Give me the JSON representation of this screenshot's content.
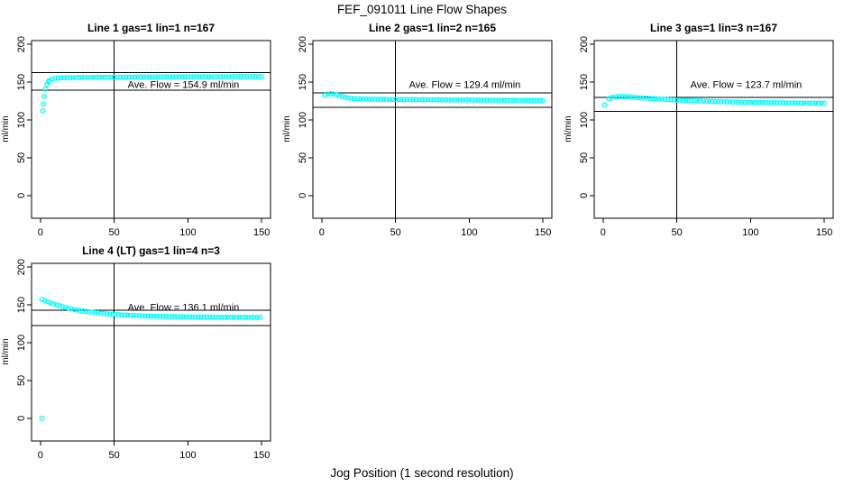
{
  "figure": {
    "title": "FEF_091011  Line Flow Shapes",
    "xlabel": "Jog Position (1 second resolution)",
    "ylabel": "ml/min",
    "point_color": "#00FFFF",
    "line_color": "#000000",
    "background": "#FFFFFF"
  },
  "chart_data": [
    {
      "type": "scatter",
      "title": "Line 1 gas=1 lin=1 n=167",
      "ave_flow": 154.9,
      "ave_flow_label": "Ave. Flow =  154.9  ml/min",
      "xlim": [
        0,
        150
      ],
      "ylim": [
        0,
        200
      ],
      "x_ticks": [
        0,
        50,
        100,
        150
      ],
      "y_ticks": [
        0,
        50,
        100,
        150,
        200
      ],
      "vline_x": 50,
      "hlines": [
        162.6,
        139.4
      ],
      "points": [
        [
          1.5,
          112
        ],
        [
          2,
          121
        ],
        [
          2.5,
          131
        ],
        [
          3.5,
          141
        ],
        [
          4.5,
          147
        ],
        [
          5.5,
          150.5
        ],
        [
          6,
          152.3
        ],
        [
          8,
          154.2
        ],
        [
          10,
          155.1
        ],
        [
          12,
          155.5
        ],
        [
          14,
          155.8
        ],
        [
          16,
          155.9
        ],
        [
          18,
          156
        ],
        [
          20,
          156
        ],
        [
          22,
          156.1
        ],
        [
          24,
          156.1
        ],
        [
          26,
          156.2
        ],
        [
          28,
          156.2
        ],
        [
          30,
          156.3
        ],
        [
          32,
          156.3
        ],
        [
          34,
          156.3
        ],
        [
          36,
          156.4
        ],
        [
          38,
          156.4
        ],
        [
          40,
          156.4
        ],
        [
          42,
          156.5
        ],
        [
          44,
          156.5
        ],
        [
          46,
          156.5
        ],
        [
          48,
          156.5
        ],
        [
          50,
          156.6
        ],
        [
          52,
          156.6
        ],
        [
          54,
          156.6
        ],
        [
          56,
          156.6
        ],
        [
          58,
          156.7
        ],
        [
          60,
          156.7
        ],
        [
          62,
          156.7
        ],
        [
          64,
          156.7
        ],
        [
          66,
          156.8
        ],
        [
          68,
          156.8
        ],
        [
          70,
          156.8
        ],
        [
          72,
          156.8
        ],
        [
          74,
          156.8
        ],
        [
          76,
          156.9
        ],
        [
          78,
          156.9
        ],
        [
          80,
          156.9
        ],
        [
          82,
          156.9
        ],
        [
          84,
          156.9
        ],
        [
          86,
          157
        ],
        [
          88,
          157
        ],
        [
          90,
          157
        ],
        [
          92,
          157
        ],
        [
          94,
          157
        ],
        [
          96,
          157
        ],
        [
          98,
          157
        ],
        [
          100,
          157
        ],
        [
          102,
          157.1
        ],
        [
          104,
          157.1
        ],
        [
          106,
          157.1
        ],
        [
          108,
          157.1
        ],
        [
          110,
          157.1
        ],
        [
          112,
          157.1
        ],
        [
          114,
          157.1
        ],
        [
          116,
          157.2
        ],
        [
          118,
          157.2
        ],
        [
          120,
          157.2
        ],
        [
          122,
          157.2
        ],
        [
          124,
          157.2
        ],
        [
          126,
          157.2
        ],
        [
          128,
          157.2
        ],
        [
          130,
          157.2
        ],
        [
          132,
          157.3
        ],
        [
          134,
          157.3
        ],
        [
          136,
          157.3
        ],
        [
          138,
          157.3
        ],
        [
          140,
          157.3
        ],
        [
          142,
          157.3
        ],
        [
          144,
          157.3
        ],
        [
          146,
          157.3
        ],
        [
          148,
          157.3
        ],
        [
          150,
          157.3
        ]
      ]
    },
    {
      "type": "scatter",
      "title": "Line 2 gas=1 lin=2 n=165",
      "ave_flow": 129.4,
      "ave_flow_label": "Ave. Flow =  129.4  ml/min",
      "xlim": [
        0,
        150
      ],
      "ylim": [
        0,
        200
      ],
      "x_ticks": [
        0,
        50,
        100,
        150
      ],
      "y_ticks": [
        0,
        50,
        100,
        150,
        200
      ],
      "vline_x": 50,
      "hlines": [
        135.9,
        116.5
      ],
      "points": [
        [
          2,
          132.5
        ],
        [
          4,
          134.3
        ],
        [
          6,
          134.8
        ],
        [
          8,
          134.4
        ],
        [
          10,
          133.4
        ],
        [
          12,
          132.2
        ],
        [
          14,
          131
        ],
        [
          16,
          130
        ],
        [
          18,
          129.2
        ],
        [
          20,
          128.7
        ],
        [
          22,
          128.3
        ],
        [
          24,
          128
        ],
        [
          26,
          127.8
        ],
        [
          28,
          127.7
        ],
        [
          30,
          127.6
        ],
        [
          32,
          127.5
        ],
        [
          34,
          127.5
        ],
        [
          36,
          127.4
        ],
        [
          38,
          127.4
        ],
        [
          40,
          127.3
        ],
        [
          42,
          127.3
        ],
        [
          44,
          127.2
        ],
        [
          46,
          127.2
        ],
        [
          48,
          127.1
        ],
        [
          50,
          127.1
        ],
        [
          52,
          127.1
        ],
        [
          54,
          127
        ],
        [
          56,
          127
        ],
        [
          58,
          127
        ],
        [
          60,
          126.9
        ],
        [
          62,
          126.9
        ],
        [
          64,
          126.9
        ],
        [
          66,
          126.8
        ],
        [
          68,
          126.8
        ],
        [
          70,
          126.8
        ],
        [
          72,
          126.7
        ],
        [
          74,
          126.7
        ],
        [
          76,
          126.7
        ],
        [
          78,
          126.7
        ],
        [
          80,
          126.6
        ],
        [
          82,
          126.6
        ],
        [
          84,
          126.6
        ],
        [
          86,
          126.5
        ],
        [
          88,
          126.5
        ],
        [
          90,
          126.5
        ],
        [
          92,
          126.5
        ],
        [
          94,
          126.4
        ],
        [
          96,
          126.4
        ],
        [
          98,
          126.4
        ],
        [
          100,
          126.4
        ],
        [
          102,
          126.3
        ],
        [
          104,
          126.3
        ],
        [
          106,
          126.3
        ],
        [
          108,
          126.3
        ],
        [
          110,
          126.2
        ],
        [
          112,
          126.2
        ],
        [
          114,
          126.2
        ],
        [
          116,
          126.2
        ],
        [
          118,
          126.1
        ],
        [
          120,
          126.1
        ],
        [
          122,
          126.1
        ],
        [
          124,
          126.1
        ],
        [
          126,
          126
        ],
        [
          128,
          126
        ],
        [
          130,
          126
        ],
        [
          132,
          126
        ],
        [
          134,
          125.9
        ],
        [
          136,
          125.9
        ],
        [
          138,
          125.9
        ],
        [
          140,
          125.9
        ],
        [
          142,
          125.8
        ],
        [
          144,
          125.8
        ],
        [
          146,
          125.8
        ],
        [
          148,
          125.8
        ],
        [
          150,
          125.7
        ]
      ]
    },
    {
      "type": "scatter",
      "title": "Line 3 gas=1 lin=3 n=167",
      "ave_flow": 123.7,
      "ave_flow_label": "Ave. Flow =  123.7  ml/min",
      "xlim": [
        0,
        150
      ],
      "ylim": [
        0,
        200
      ],
      "x_ticks": [
        0,
        50,
        100,
        150
      ],
      "y_ticks": [
        0,
        50,
        100,
        150,
        200
      ],
      "vline_x": 50,
      "hlines": [
        129.9,
        111.3
      ],
      "points": [
        [
          1,
          120
        ],
        [
          4,
          128.3
        ],
        [
          6,
          129.8
        ],
        [
          8,
          130.5
        ],
        [
          10,
          130.9
        ],
        [
          12,
          131
        ],
        [
          14,
          130.9
        ],
        [
          16,
          130.7
        ],
        [
          18,
          130.4
        ],
        [
          20,
          130.1
        ],
        [
          22,
          129.8
        ],
        [
          24,
          129.5
        ],
        [
          26,
          129.2
        ],
        [
          28,
          128.9
        ],
        [
          30,
          128.7
        ],
        [
          32,
          128.4
        ],
        [
          34,
          128.2
        ],
        [
          36,
          127.9
        ],
        [
          38,
          127.7
        ],
        [
          40,
          127.5
        ],
        [
          42,
          127.2
        ],
        [
          44,
          127
        ],
        [
          46,
          126.8
        ],
        [
          48,
          126.6
        ],
        [
          50,
          126.4
        ],
        [
          52,
          126.2
        ],
        [
          54,
          126.1
        ],
        [
          56,
          125.9
        ],
        [
          58,
          125.7
        ],
        [
          60,
          125.6
        ],
        [
          62,
          125.4
        ],
        [
          64,
          125.3
        ],
        [
          66,
          125.1
        ],
        [
          68,
          125
        ],
        [
          70,
          124.8
        ],
        [
          72,
          124.7
        ],
        [
          74,
          124.6
        ],
        [
          76,
          124.5
        ],
        [
          78,
          124.3
        ],
        [
          80,
          124.2
        ],
        [
          82,
          124.1
        ],
        [
          84,
          124
        ],
        [
          86,
          123.9
        ],
        [
          88,
          123.8
        ],
        [
          90,
          123.7
        ],
        [
          92,
          123.7
        ],
        [
          94,
          123.6
        ],
        [
          96,
          123.5
        ],
        [
          98,
          123.4
        ],
        [
          100,
          123.3
        ],
        [
          102,
          123.3
        ],
        [
          104,
          123.2
        ],
        [
          106,
          123.1
        ],
        [
          108,
          123.1
        ],
        [
          110,
          123
        ],
        [
          112,
          122.9
        ],
        [
          114,
          122.9
        ],
        [
          116,
          122.8
        ],
        [
          118,
          122.8
        ],
        [
          120,
          122.7
        ],
        [
          122,
          122.7
        ],
        [
          124,
          122.6
        ],
        [
          126,
          122.6
        ],
        [
          128,
          122.5
        ],
        [
          130,
          122.5
        ],
        [
          132,
          122.4
        ],
        [
          134,
          122.4
        ],
        [
          136,
          122.4
        ],
        [
          138,
          122.3
        ],
        [
          140,
          122.3
        ],
        [
          142,
          122.3
        ],
        [
          144,
          122.2
        ],
        [
          146,
          122.2
        ],
        [
          148,
          122.2
        ],
        [
          150,
          122.1
        ]
      ]
    },
    {
      "type": "scatter",
      "title": "Line 4 (LT) gas=1 lin=4 n=3",
      "ave_flow": 136.1,
      "ave_flow_label": "Ave. Flow =  136.1  ml/min",
      "xlim": [
        0,
        150
      ],
      "ylim": [
        0,
        200
      ],
      "x_ticks": [
        0,
        50,
        100,
        150
      ],
      "y_ticks": [
        0,
        50,
        100,
        150,
        200
      ],
      "vline_x": 50,
      "hlines": [
        142.9,
        122.5
      ],
      "points": [
        [
          1,
          0
        ],
        [
          1,
          157.3
        ],
        [
          3,
          155.7
        ],
        [
          5,
          154.1
        ],
        [
          7,
          152.7
        ],
        [
          9,
          151.4
        ],
        [
          11,
          150.1
        ],
        [
          13,
          148.9
        ],
        [
          15,
          147.8
        ],
        [
          17,
          146.6
        ],
        [
          19,
          145.7
        ],
        [
          21,
          144.8
        ],
        [
          23,
          143.9
        ],
        [
          25,
          143.3
        ],
        [
          27,
          142.5
        ],
        [
          29,
          141.9
        ],
        [
          31,
          141.4
        ],
        [
          33,
          140.9
        ],
        [
          35,
          140.4
        ],
        [
          37,
          139.9
        ],
        [
          39,
          139.5
        ],
        [
          41,
          139.1
        ],
        [
          43,
          138.7
        ],
        [
          45,
          138.3
        ],
        [
          47,
          138
        ],
        [
          49,
          137.7
        ],
        [
          51,
          137.4
        ],
        [
          53,
          137.1
        ],
        [
          55,
          136.9
        ],
        [
          57,
          136.6
        ],
        [
          59,
          136.4
        ],
        [
          61,
          136.2
        ],
        [
          63,
          136
        ],
        [
          65,
          135.9
        ],
        [
          67,
          135.7
        ],
        [
          69,
          135.6
        ],
        [
          71,
          135.4
        ],
        [
          73,
          135.3
        ],
        [
          75,
          135.2
        ],
        [
          77,
          135
        ],
        [
          79,
          134.9
        ],
        [
          81,
          134.8
        ],
        [
          83,
          134.8
        ],
        [
          85,
          134.7
        ],
        [
          87,
          134.6
        ],
        [
          89,
          134.5
        ],
        [
          91,
          134.4
        ],
        [
          93,
          134.4
        ],
        [
          95,
          134.3
        ],
        [
          97,
          134.3
        ],
        [
          99,
          134.2
        ],
        [
          101,
          134.2
        ],
        [
          103,
          134.1
        ],
        [
          105,
          134.1
        ],
        [
          107,
          134
        ],
        [
          109,
          134
        ],
        [
          111,
          133.9
        ],
        [
          113,
          133.9
        ],
        [
          115,
          133.9
        ],
        [
          117,
          133.8
        ],
        [
          119,
          133.8
        ],
        [
          121,
          133.8
        ],
        [
          123,
          133.7
        ],
        [
          125,
          133.7
        ],
        [
          127,
          133.7
        ],
        [
          129,
          133.7
        ],
        [
          131,
          133.6
        ],
        [
          133,
          133.6
        ],
        [
          135,
          133.6
        ],
        [
          137,
          133.6
        ],
        [
          139,
          133.6
        ],
        [
          141,
          133.6
        ],
        [
          143,
          133.5
        ],
        [
          145,
          133.5
        ],
        [
          147,
          133.5
        ],
        [
          149,
          133.5
        ]
      ]
    }
  ]
}
